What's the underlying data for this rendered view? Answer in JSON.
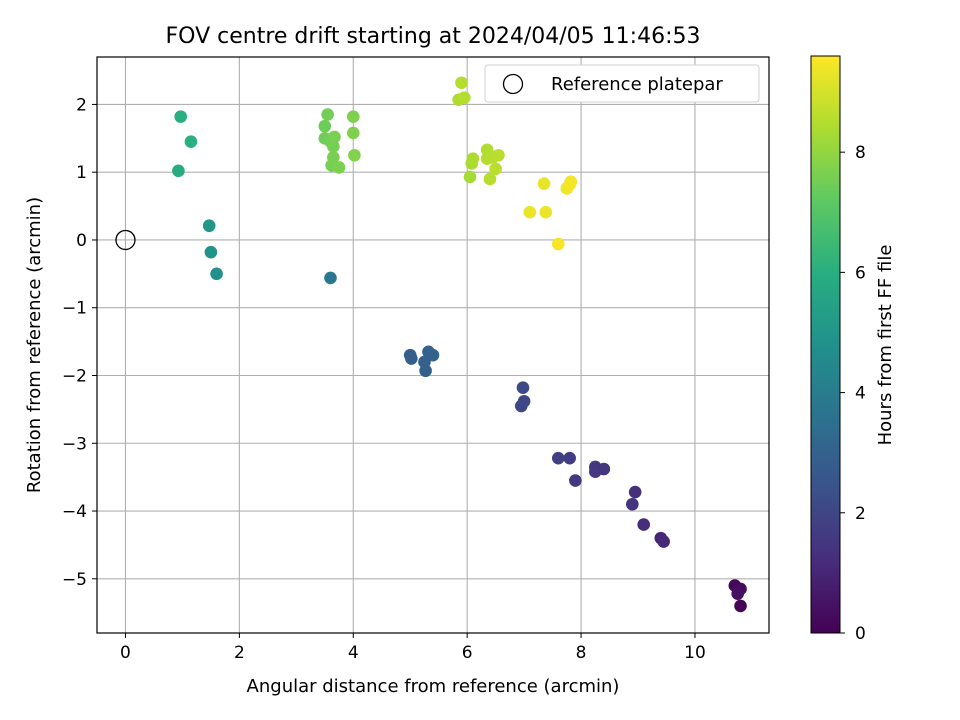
{
  "chart_data": {
    "type": "scatter",
    "title": "FOV centre drift starting at 2024/04/05 11:46:53",
    "xlabel": "Angular distance from reference (arcmin)",
    "ylabel": "Rotation from reference (arcmin)",
    "xlim": [
      -0.5,
      11.3
    ],
    "ylim": [
      -5.8,
      2.7
    ],
    "x_ticks": [
      0,
      2,
      4,
      6,
      8,
      10
    ],
    "y_ticks": [
      -5,
      -4,
      -3,
      -2,
      -1,
      0,
      1,
      2
    ],
    "x_tick_labels": [
      "0",
      "2",
      "4",
      "6",
      "8",
      "10"
    ],
    "y_tick_labels": [
      "−5",
      "−4",
      "−3",
      "−2",
      "−1",
      "0",
      "1",
      "2"
    ],
    "grid": true,
    "legend": {
      "placement": "top-right",
      "entries": [
        {
          "label": "Reference platepar",
          "marker": "open-circle"
        }
      ]
    },
    "reference_point": {
      "x": 0,
      "y": 0
    },
    "colorbar": {
      "label": "Hours from first FF file",
      "colormap": "viridis",
      "range": [
        0,
        9.6
      ],
      "ticks": [
        0,
        2,
        4,
        6,
        8
      ],
      "tick_labels": [
        "0",
        "2",
        "4",
        "6",
        "8"
      ]
    },
    "points": [
      {
        "x": 10.7,
        "y": -5.1,
        "hours": 0.2
      },
      {
        "x": 10.8,
        "y": -5.15,
        "hours": 0.3
      },
      {
        "x": 10.75,
        "y": -5.22,
        "hours": 0.4
      },
      {
        "x": 10.8,
        "y": -5.4,
        "hours": 0.1
      },
      {
        "x": 9.4,
        "y": -4.4,
        "hours": 1.0
      },
      {
        "x": 9.45,
        "y": -4.45,
        "hours": 1.1
      },
      {
        "x": 9.1,
        "y": -4.2,
        "hours": 1.2
      },
      {
        "x": 8.95,
        "y": -3.72,
        "hours": 1.3
      },
      {
        "x": 8.9,
        "y": -3.9,
        "hours": 1.4
      },
      {
        "x": 8.25,
        "y": -3.35,
        "hours": 1.5
      },
      {
        "x": 8.25,
        "y": -3.42,
        "hours": 1.55
      },
      {
        "x": 8.4,
        "y": -3.38,
        "hours": 1.5
      },
      {
        "x": 7.9,
        "y": -3.55,
        "hours": 1.6
      },
      {
        "x": 7.8,
        "y": -3.22,
        "hours": 1.7
      },
      {
        "x": 7.6,
        "y": -3.22,
        "hours": 1.8
      },
      {
        "x": 6.95,
        "y": -2.45,
        "hours": 2.0
      },
      {
        "x": 7.0,
        "y": -2.38,
        "hours": 2.05
      },
      {
        "x": 6.98,
        "y": -2.18,
        "hours": 2.1
      },
      {
        "x": 5.0,
        "y": -1.7,
        "hours": 2.8
      },
      {
        "x": 5.02,
        "y": -1.75,
        "hours": 2.85
      },
      {
        "x": 5.25,
        "y": -1.8,
        "hours": 2.9
      },
      {
        "x": 5.27,
        "y": -1.93,
        "hours": 2.95
      },
      {
        "x": 5.32,
        "y": -1.65,
        "hours": 3.0
      },
      {
        "x": 5.4,
        "y": -1.7,
        "hours": 3.05
      },
      {
        "x": 3.6,
        "y": -0.56,
        "hours": 3.8
      },
      {
        "x": 1.6,
        "y": -0.5,
        "hours": 4.8
      },
      {
        "x": 1.5,
        "y": -0.18,
        "hours": 4.9
      },
      {
        "x": 1.47,
        "y": 0.21,
        "hours": 5.0
      },
      {
        "x": 0.93,
        "y": 1.02,
        "hours": 5.9
      },
      {
        "x": 0.97,
        "y": 1.82,
        "hours": 6.0
      },
      {
        "x": 1.15,
        "y": 1.45,
        "hours": 6.05
      },
      {
        "x": 3.5,
        "y": 1.68,
        "hours": 7.4
      },
      {
        "x": 3.5,
        "y": 1.5,
        "hours": 7.45
      },
      {
        "x": 3.55,
        "y": 1.85,
        "hours": 7.5
      },
      {
        "x": 3.6,
        "y": 1.45,
        "hours": 7.5
      },
      {
        "x": 3.65,
        "y": 1.38,
        "hours": 7.55
      },
      {
        "x": 3.67,
        "y": 1.52,
        "hours": 7.6
      },
      {
        "x": 3.62,
        "y": 1.1,
        "hours": 7.55
      },
      {
        "x": 3.65,
        "y": 1.22,
        "hours": 7.6
      },
      {
        "x": 3.75,
        "y": 1.07,
        "hours": 7.65
      },
      {
        "x": 4.0,
        "y": 1.82,
        "hours": 7.7
      },
      {
        "x": 4.0,
        "y": 1.58,
        "hours": 7.7
      },
      {
        "x": 4.02,
        "y": 1.25,
        "hours": 7.75
      },
      {
        "x": 5.85,
        "y": 2.07,
        "hours": 8.45
      },
      {
        "x": 5.9,
        "y": 2.32,
        "hours": 8.5
      },
      {
        "x": 5.95,
        "y": 2.1,
        "hours": 8.5
      },
      {
        "x": 6.05,
        "y": 0.93,
        "hours": 8.3
      },
      {
        "x": 6.08,
        "y": 1.13,
        "hours": 8.35
      },
      {
        "x": 6.1,
        "y": 1.2,
        "hours": 8.4
      },
      {
        "x": 6.35,
        "y": 1.33,
        "hours": 8.45
      },
      {
        "x": 6.35,
        "y": 1.2,
        "hours": 8.5
      },
      {
        "x": 6.4,
        "y": 0.9,
        "hours": 8.55
      },
      {
        "x": 6.45,
        "y": 1.22,
        "hours": 8.55
      },
      {
        "x": 6.5,
        "y": 1.05,
        "hours": 8.6
      },
      {
        "x": 6.55,
        "y": 1.25,
        "hours": 8.6
      },
      {
        "x": 7.1,
        "y": 0.41,
        "hours": 9.35
      },
      {
        "x": 7.35,
        "y": 0.83,
        "hours": 9.3
      },
      {
        "x": 7.38,
        "y": 0.41,
        "hours": 9.35
      },
      {
        "x": 7.6,
        "y": -0.06,
        "hours": 9.5
      },
      {
        "x": 7.75,
        "y": 0.76,
        "hours": 9.4
      },
      {
        "x": 7.8,
        "y": 0.82,
        "hours": 9.45
      },
      {
        "x": 7.82,
        "y": 0.86,
        "hours": 9.45
      }
    ]
  }
}
